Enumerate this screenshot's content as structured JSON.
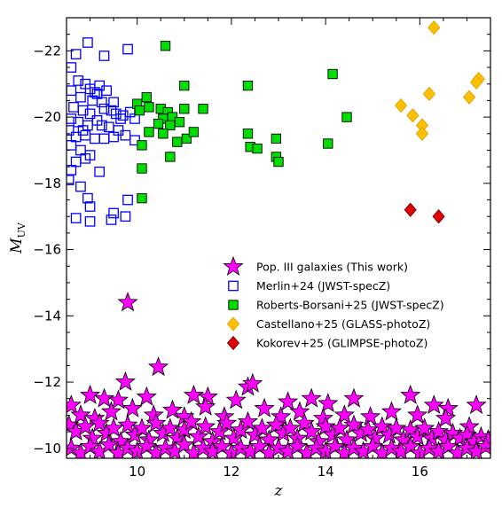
{
  "chart_data": {
    "type": "scatter",
    "xlabel": "z",
    "ylabel": "M",
    "ylabel_sub": "UV",
    "xlim": [
      8.5,
      17.5
    ],
    "ylim": [
      -9.7,
      -23.0
    ],
    "y_inverted": true,
    "x_ticks": [
      10,
      12,
      14,
      16
    ],
    "x_tick_labels": [
      "10",
      "12",
      "14",
      "16"
    ],
    "y_ticks": [
      -10,
      -12,
      -14,
      -16,
      -18,
      -20,
      -22
    ],
    "y_tick_labels": [
      "−10",
      "−12",
      "−14",
      "−16",
      "−18",
      "−20",
      "−22"
    ],
    "grid": false,
    "legend_position": "center-right",
    "series": [
      {
        "name": "Pop. III galaxies (This work)",
        "marker": "star",
        "color": "#ff00ff",
        "points": [
          [
            9.8,
            -14.4
          ],
          [
            10.45,
            -12.45
          ],
          [
            9.75,
            -12.0
          ],
          [
            12.35,
            -11.85
          ],
          [
            12.45,
            -11.95
          ],
          [
            9.0,
            -11.6
          ],
          [
            9.3,
            -11.5
          ],
          [
            9.6,
            -11.45
          ],
          [
            10.2,
            -11.55
          ],
          [
            11.2,
            -11.6
          ],
          [
            11.5,
            -11.55
          ],
          [
            12.1,
            -11.45
          ],
          [
            13.2,
            -11.4
          ],
          [
            13.7,
            -11.5
          ],
          [
            14.05,
            -11.35
          ],
          [
            14.6,
            -11.5
          ],
          [
            15.8,
            -11.6
          ],
          [
            16.3,
            -11.3
          ],
          [
            17.2,
            -11.3
          ],
          [
            16.6,
            -11.2
          ],
          [
            8.6,
            -11.3
          ],
          [
            8.8,
            -11.0
          ],
          [
            9.1,
            -10.9
          ],
          [
            9.45,
            -11.1
          ],
          [
            9.9,
            -11.2
          ],
          [
            10.35,
            -11.0
          ],
          [
            10.75,
            -11.15
          ],
          [
            11.0,
            -10.95
          ],
          [
            11.45,
            -11.25
          ],
          [
            11.85,
            -10.95
          ],
          [
            12.7,
            -11.2
          ],
          [
            13.05,
            -10.95
          ],
          [
            13.45,
            -11.1
          ],
          [
            13.95,
            -10.9
          ],
          [
            14.4,
            -11.0
          ],
          [
            14.95,
            -10.95
          ],
          [
            15.4,
            -11.1
          ],
          [
            15.95,
            -11.0
          ],
          [
            16.55,
            -10.9
          ],
          [
            17.05,
            -10.65
          ],
          [
            8.55,
            -10.7
          ],
          [
            8.7,
            -10.5
          ],
          [
            8.9,
            -10.65
          ],
          [
            9.05,
            -10.3
          ],
          [
            9.2,
            -10.75
          ],
          [
            9.35,
            -10.45
          ],
          [
            9.5,
            -10.6
          ],
          [
            9.65,
            -10.2
          ],
          [
            9.8,
            -10.7
          ],
          [
            9.95,
            -10.4
          ],
          [
            10.1,
            -10.6
          ],
          [
            10.25,
            -10.25
          ],
          [
            10.4,
            -10.75
          ],
          [
            10.55,
            -10.45
          ],
          [
            10.7,
            -10.6
          ],
          [
            10.85,
            -10.3
          ],
          [
            11.0,
            -10.55
          ],
          [
            11.15,
            -10.8
          ],
          [
            11.3,
            -10.35
          ],
          [
            11.45,
            -10.65
          ],
          [
            11.6,
            -10.2
          ],
          [
            11.75,
            -10.5
          ],
          [
            11.9,
            -10.75
          ],
          [
            12.05,
            -10.3
          ],
          [
            12.2,
            -10.55
          ],
          [
            12.35,
            -10.8
          ],
          [
            12.5,
            -10.4
          ],
          [
            12.65,
            -10.6
          ],
          [
            12.8,
            -10.25
          ],
          [
            12.95,
            -10.7
          ],
          [
            13.1,
            -10.45
          ],
          [
            13.25,
            -10.6
          ],
          [
            13.4,
            -10.3
          ],
          [
            13.55,
            -10.75
          ],
          [
            13.7,
            -10.5
          ],
          [
            13.85,
            -10.2
          ],
          [
            14.0,
            -10.65
          ],
          [
            14.15,
            -10.4
          ],
          [
            14.3,
            -10.6
          ],
          [
            14.45,
            -10.25
          ],
          [
            14.6,
            -10.7
          ],
          [
            14.75,
            -10.45
          ],
          [
            14.9,
            -10.55
          ],
          [
            15.05,
            -10.3
          ],
          [
            15.2,
            -10.65
          ],
          [
            15.35,
            -10.4
          ],
          [
            15.5,
            -10.6
          ],
          [
            15.65,
            -10.25
          ],
          [
            15.8,
            -10.55
          ],
          [
            15.95,
            -10.35
          ],
          [
            16.1,
            -10.6
          ],
          [
            16.25,
            -10.3
          ],
          [
            16.4,
            -10.5
          ],
          [
            16.55,
            -10.25
          ],
          [
            16.7,
            -10.45
          ],
          [
            16.85,
            -10.3
          ],
          [
            17.0,
            -10.4
          ],
          [
            17.15,
            -10.2
          ],
          [
            17.3,
            -10.35
          ],
          [
            17.45,
            -10.25
          ],
          [
            8.6,
            -10.0
          ],
          [
            8.8,
            -9.85
          ],
          [
            9.0,
            -10.05
          ],
          [
            9.2,
            -9.9
          ],
          [
            9.4,
            -10.1
          ],
          [
            9.6,
            -9.85
          ],
          [
            9.8,
            -10.0
          ],
          [
            10.0,
            -9.9
          ],
          [
            10.2,
            -10.05
          ],
          [
            10.4,
            -9.85
          ],
          [
            10.6,
            -10.0
          ],
          [
            10.8,
            -9.9
          ],
          [
            11.0,
            -10.1
          ],
          [
            11.2,
            -9.85
          ],
          [
            11.4,
            -10.0
          ],
          [
            11.6,
            -9.9
          ],
          [
            11.8,
            -10.05
          ],
          [
            12.0,
            -9.85
          ],
          [
            12.2,
            -10.0
          ],
          [
            12.4,
            -9.9
          ],
          [
            12.6,
            -10.05
          ],
          [
            12.8,
            -9.85
          ],
          [
            13.0,
            -10.0
          ],
          [
            13.2,
            -9.9
          ],
          [
            13.4,
            -10.05
          ],
          [
            13.6,
            -9.85
          ],
          [
            13.8,
            -10.0
          ],
          [
            14.0,
            -9.9
          ],
          [
            14.2,
            -10.05
          ],
          [
            14.4,
            -9.85
          ],
          [
            14.6,
            -10.0
          ],
          [
            14.8,
            -9.9
          ],
          [
            15.0,
            -10.05
          ],
          [
            15.2,
            -9.85
          ],
          [
            15.4,
            -10.0
          ],
          [
            15.6,
            -9.9
          ],
          [
            15.8,
            -10.05
          ],
          [
            16.0,
            -9.85
          ],
          [
            16.2,
            -10.0
          ],
          [
            16.4,
            -9.9
          ],
          [
            16.6,
            -10.05
          ],
          [
            16.8,
            -9.85
          ],
          [
            17.0,
            -10.0
          ],
          [
            17.2,
            -9.9
          ],
          [
            17.4,
            -10.05
          ]
        ]
      },
      {
        "name": "Merlin+24 (JWST-specZ)",
        "marker": "open-square",
        "color": "#0000ff",
        "points": [
          [
            8.95,
            -22.25
          ],
          [
            8.7,
            -21.9
          ],
          [
            8.6,
            -21.5
          ],
          [
            9.3,
            -21.85
          ],
          [
            9.8,
            -22.05
          ],
          [
            8.75,
            -21.1
          ],
          [
            8.9,
            -21.0
          ],
          [
            9.0,
            -20.85
          ],
          [
            9.1,
            -20.75
          ],
          [
            9.2,
            -20.95
          ],
          [
            9.35,
            -20.8
          ],
          [
            8.6,
            -20.8
          ],
          [
            8.8,
            -20.6
          ],
          [
            9.05,
            -20.5
          ],
          [
            9.25,
            -20.45
          ],
          [
            9.5,
            -20.45
          ],
          [
            8.65,
            -20.3
          ],
          [
            8.85,
            -20.2
          ],
          [
            9.0,
            -20.1
          ],
          [
            9.3,
            -20.25
          ],
          [
            9.55,
            -20.1
          ],
          [
            9.7,
            -20.05
          ],
          [
            9.85,
            -20.15
          ],
          [
            9.95,
            -19.95
          ],
          [
            8.6,
            -19.95
          ],
          [
            8.75,
            -19.85
          ],
          [
            8.95,
            -19.75
          ],
          [
            9.15,
            -19.9
          ],
          [
            9.4,
            -19.7
          ],
          [
            9.6,
            -19.6
          ],
          [
            8.55,
            -19.6
          ],
          [
            8.7,
            -19.4
          ],
          [
            8.9,
            -19.45
          ],
          [
            9.1,
            -19.35
          ],
          [
            9.3,
            -19.35
          ],
          [
            9.5,
            -19.4
          ],
          [
            9.75,
            -19.45
          ],
          [
            9.95,
            -19.3
          ],
          [
            8.6,
            -19.15
          ],
          [
            8.8,
            -19.0
          ],
          [
            9.0,
            -18.85
          ],
          [
            8.7,
            -18.65
          ],
          [
            8.9,
            -18.75
          ],
          [
            8.6,
            -18.4
          ],
          [
            9.2,
            -18.35
          ],
          [
            8.55,
            -18.1
          ],
          [
            8.8,
            -17.9
          ],
          [
            8.95,
            -17.55
          ],
          [
            9.0,
            -17.3
          ],
          [
            9.5,
            -17.1
          ],
          [
            8.7,
            -16.95
          ],
          [
            9.0,
            -16.85
          ],
          [
            9.45,
            -16.9
          ],
          [
            9.75,
            -17.0
          ],
          [
            9.8,
            -17.5
          ],
          [
            9.15,
            -20.7
          ],
          [
            9.45,
            -20.2
          ],
          [
            9.65,
            -19.95
          ],
          [
            8.85,
            -19.6
          ],
          [
            9.25,
            -19.75
          ]
        ]
      },
      {
        "name": "Roberts-Borsani+25 (JWST-specZ)",
        "marker": "filled-square",
        "color": "#00dd00",
        "points": [
          [
            10.6,
            -22.15
          ],
          [
            14.15,
            -21.3
          ],
          [
            11.0,
            -20.95
          ],
          [
            12.35,
            -20.95
          ],
          [
            10.2,
            -20.6
          ],
          [
            10.0,
            -20.4
          ],
          [
            10.25,
            -20.3
          ],
          [
            10.05,
            -20.2
          ],
          [
            10.5,
            -20.25
          ],
          [
            10.65,
            -20.15
          ],
          [
            10.75,
            -20.0
          ],
          [
            11.0,
            -20.25
          ],
          [
            11.4,
            -20.25
          ],
          [
            10.55,
            -19.95
          ],
          [
            10.45,
            -19.8
          ],
          [
            10.7,
            -19.75
          ],
          [
            10.9,
            -19.85
          ],
          [
            10.25,
            -19.55
          ],
          [
            10.55,
            -19.5
          ],
          [
            10.85,
            -19.25
          ],
          [
            11.05,
            -19.35
          ],
          [
            11.2,
            -19.55
          ],
          [
            10.1,
            -19.15
          ],
          [
            12.35,
            -19.5
          ],
          [
            12.4,
            -19.1
          ],
          [
            12.55,
            -19.05
          ],
          [
            12.95,
            -19.35
          ],
          [
            12.95,
            -18.8
          ],
          [
            13.0,
            -18.65
          ],
          [
            14.05,
            -19.2
          ],
          [
            14.45,
            -20.0
          ],
          [
            10.7,
            -18.8
          ],
          [
            10.1,
            -18.45
          ],
          [
            10.1,
            -17.55
          ]
        ]
      },
      {
        "name": "Castellano+25 (GLASS-photoZ)",
        "marker": "diamond",
        "color": "#ffc000",
        "points": [
          [
            16.3,
            -22.7
          ],
          [
            17.25,
            -21.15
          ],
          [
            17.2,
            -21.05
          ],
          [
            16.2,
            -20.7
          ],
          [
            17.05,
            -20.6
          ],
          [
            15.6,
            -20.35
          ],
          [
            15.85,
            -20.05
          ],
          [
            16.05,
            -19.75
          ],
          [
            16.05,
            -19.5
          ]
        ]
      },
      {
        "name": "Kokorev+25 (GLIMPSE-photoZ)",
        "marker": "diamond",
        "color": "#e00000",
        "points": [
          [
            15.8,
            -17.2
          ],
          [
            16.4,
            -17.0
          ]
        ]
      }
    ]
  }
}
